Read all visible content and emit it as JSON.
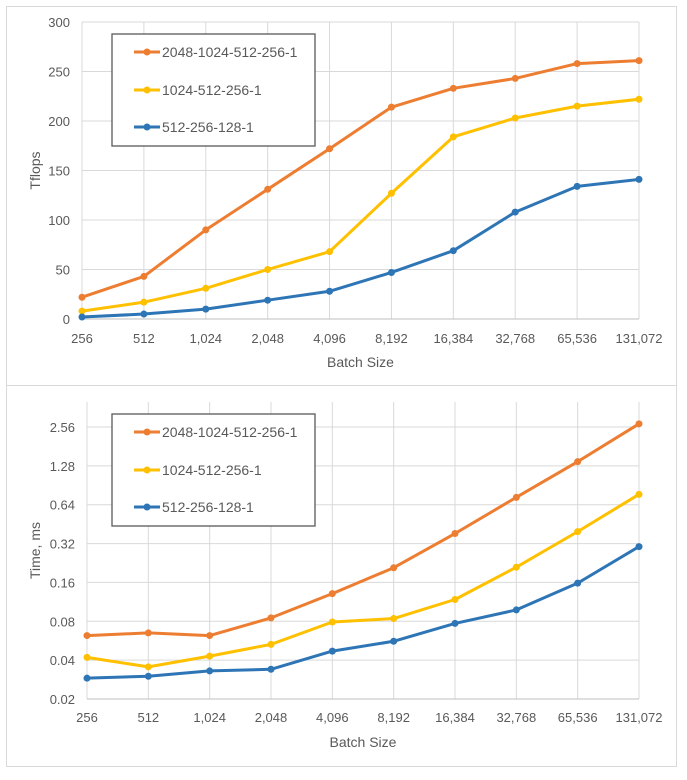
{
  "chart_data": [
    {
      "type": "line",
      "title": "",
      "xlabel": "Batch Size",
      "ylabel": "Tflops",
      "yscale": "linear",
      "ylim": [
        0,
        300
      ],
      "yticks": [
        0,
        50,
        100,
        150,
        200,
        250,
        300
      ],
      "ytick_labels": [
        "0",
        "50",
        "100",
        "150",
        "200",
        "250",
        "300"
      ],
      "categories": [
        "256",
        "512",
        "1,024",
        "2,048",
        "4,096",
        "8,192",
        "16,384",
        "32,768",
        "65,536",
        "131,072"
      ],
      "grid": true,
      "legend_position": "top-left",
      "series": [
        {
          "name": "2048-1024-512-256-1",
          "color": "#ED7D31",
          "values": [
            22,
            43,
            90,
            131,
            172,
            214,
            233,
            243,
            258,
            261
          ]
        },
        {
          "name": "1024-512-256-1",
          "color": "#FFC000",
          "values": [
            8,
            17,
            31,
            50,
            68,
            127,
            184,
            203,
            215,
            222
          ]
        },
        {
          "name": "512-256-128-1",
          "color": "#2E75B6",
          "values": [
            2,
            5,
            10,
            19,
            28,
            47,
            69,
            108,
            134,
            141
          ]
        }
      ]
    },
    {
      "type": "line",
      "title": "",
      "xlabel": "Batch Size",
      "ylabel": "Time, ms",
      "yscale": "log2",
      "ylim": [
        0.02,
        4.0
      ],
      "yticks": [
        0.02,
        0.04,
        0.08,
        0.16,
        0.32,
        0.64,
        1.28,
        2.56
      ],
      "ytick_labels": [
        "0.02",
        "0.04",
        "0.08",
        "0.16",
        "0.32",
        "0.64",
        "1.28",
        "2.56"
      ],
      "categories": [
        "256",
        "512",
        "1,024",
        "2,048",
        "4,096",
        "8,192",
        "16,384",
        "32,768",
        "65,536",
        "131,072"
      ],
      "grid": true,
      "legend_position": "top-left",
      "series": [
        {
          "name": "2048-1024-512-256-1",
          "color": "#ED7D31",
          "values": [
            0.062,
            0.065,
            0.062,
            0.085,
            0.131,
            0.208,
            0.383,
            0.73,
            1.38,
            2.71
          ]
        },
        {
          "name": "1024-512-256-1",
          "color": "#FFC000",
          "values": [
            0.042,
            0.0355,
            0.043,
            0.053,
            0.079,
            0.084,
            0.118,
            0.21,
            0.396,
            0.77
          ]
        },
        {
          "name": "512-256-128-1",
          "color": "#2E75B6",
          "values": [
            0.029,
            0.03,
            0.033,
            0.034,
            0.047,
            0.056,
            0.077,
            0.098,
            0.158,
            0.303
          ]
        }
      ]
    }
  ]
}
